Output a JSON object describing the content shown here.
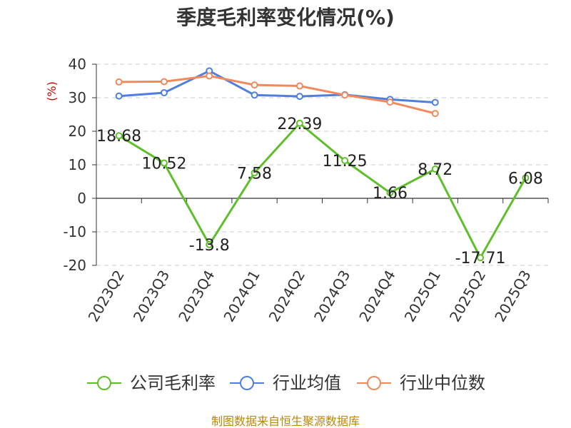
{
  "chart_data": {
    "type": "line",
    "title": "季度毛利率变化情况(%)",
    "ylabel": "(%)",
    "categories": [
      "2023Q2",
      "2023Q3",
      "2023Q4",
      "2024Q1",
      "2024Q2",
      "2024Q3",
      "2024Q4",
      "2025Q1",
      "2025Q2",
      "2025Q3"
    ],
    "ylim": [
      -20,
      40
    ],
    "yticks": [
      "40",
      "30",
      "20",
      "10",
      "0",
      "-10",
      "-20"
    ],
    "grid": true,
    "legend_position": "bottom",
    "series": [
      {
        "name": "公司毛利率",
        "color": "#5fbf2a",
        "values": [
          18.68,
          10.52,
          -13.8,
          7.58,
          22.39,
          11.25,
          1.66,
          8.72,
          -17.71,
          6.08
        ],
        "labels": [
          "18.68",
          "10.52",
          "-13.8",
          "7.58",
          "22.39",
          "11.25",
          "1.66",
          "8.72",
          "-17.71",
          "6.08"
        ]
      },
      {
        "name": "行业均值",
        "color": "#4f7fdc",
        "values": [
          30.5,
          31.5,
          38.0,
          30.8,
          30.4,
          30.9,
          29.5,
          28.6,
          null,
          null
        ]
      },
      {
        "name": "行业中位数",
        "color": "#f08a5d",
        "values": [
          34.7,
          34.8,
          36.5,
          33.8,
          33.5,
          30.8,
          28.7,
          25.3,
          null,
          null
        ]
      }
    ]
  },
  "source_note": "制图数据来自恒生聚源数据库"
}
